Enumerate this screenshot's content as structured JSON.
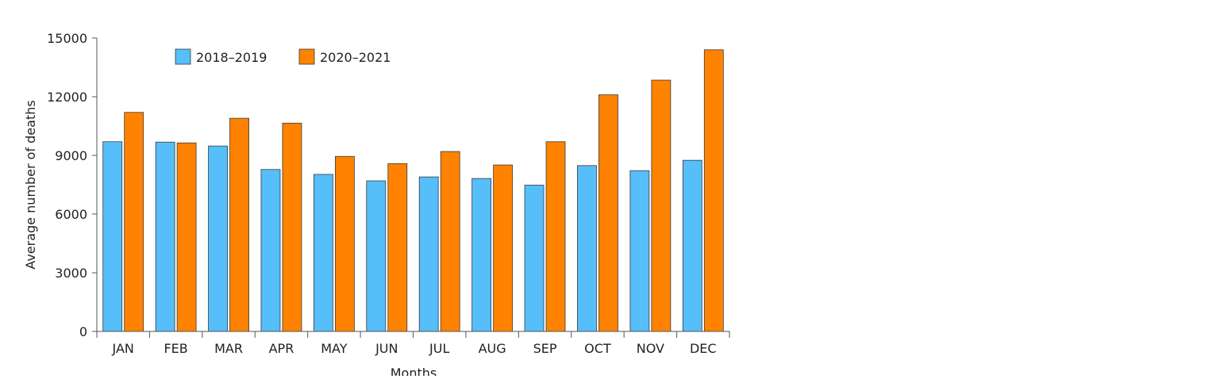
{
  "chart_data": {
    "type": "bar",
    "categories": [
      "JAN",
      "FEB",
      "MAR",
      "APR",
      "MAY",
      "JUN",
      "JUL",
      "AUG",
      "SEP",
      "OCT",
      "NOV",
      "DEC"
    ],
    "series": [
      {
        "name": "2018–2019",
        "color": "#56bef9",
        "values": [
          9700,
          9680,
          9480,
          8280,
          8030,
          7700,
          7900,
          7820,
          7480,
          8480,
          8220,
          8750
        ]
      },
      {
        "name": "2020–2021",
        "color": "#ff8200",
        "values": [
          11200,
          9640,
          10900,
          10650,
          8950,
          8580,
          9200,
          8510,
          9700,
          12100,
          12850,
          14400
        ]
      }
    ],
    "xlabel": "Months",
    "ylabel": "Average number of deaths",
    "ylim": [
      0,
      15000
    ],
    "yticks": [
      0,
      3000,
      6000,
      9000,
      12000,
      15000
    ],
    "grid": false,
    "legend_position": "top-left"
  }
}
